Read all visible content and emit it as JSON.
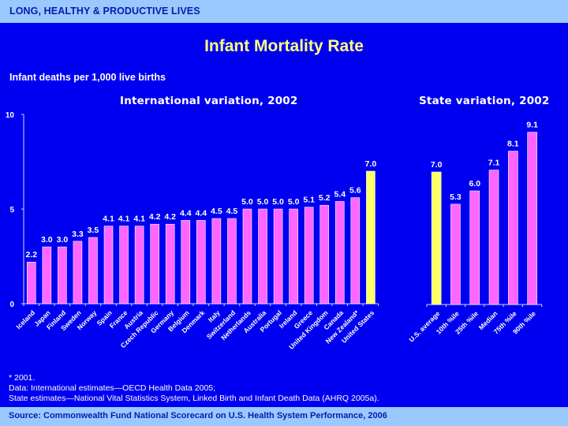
{
  "header": {
    "section_title": "LONG, HEALTHY & PRODUCTIVE LIVES"
  },
  "title": "Infant Mortality Rate",
  "subtitle": "Infant deaths per 1,000 live births",
  "labels": {
    "international": "International variation, 2002",
    "state": "State variation, 2002"
  },
  "footnotes": {
    "line1": "* 2001.",
    "line2": "Data: International estimates—OECD Health Data 2005;",
    "line3": "State estimates—National Vital Statistics System, Linked Birth and Infant Death Data (AHRQ 2005a)."
  },
  "source": "Source: Commonwealth Fund National Scorecard on U.S. Health System Performance, 2006",
  "colors": {
    "background": "#0000f0",
    "band": "#99c9ff",
    "bar_default": "#ff66ff",
    "bar_highlight": "#ffff66",
    "title": "#ffff80"
  },
  "chart_data": [
    {
      "type": "bar",
      "title": "International variation, 2002",
      "ylabel": "Infant deaths per 1,000 live births",
      "ylim": [
        0,
        10
      ],
      "yticks": [
        0,
        5,
        10
      ],
      "grid": false,
      "categories": [
        "Iceland",
        "Japan",
        "Finland",
        "Sweden",
        "Norway",
        "Spain",
        "France",
        "Austria",
        "Czech Republic",
        "Germany",
        "Belgium",
        "Denmark",
        "Italy",
        "Switzerland",
        "Netherlands",
        "Australia",
        "Portugal",
        "Ireland",
        "Greece",
        "United Kingdom",
        "Canada",
        "New Zealand*",
        "United States"
      ],
      "values": [
        2.2,
        3.0,
        3.0,
        3.3,
        3.5,
        4.1,
        4.1,
        4.1,
        4.2,
        4.2,
        4.4,
        4.4,
        4.5,
        4.5,
        5.0,
        5.0,
        5.0,
        5.0,
        5.1,
        5.2,
        5.4,
        5.6,
        7.0
      ],
      "value_labels": [
        "2.2",
        "3.0",
        "3.0",
        "3.3",
        "3.5",
        "4.1",
        "4.1",
        "4.1",
        "4.2",
        "4.2",
        "4.4",
        "4.4",
        "4.5",
        "4.5",
        "5.0",
        "5.0",
        "5.0",
        "5.0",
        "5.1",
        "5.2",
        "5.4",
        "5.6",
        "7.0"
      ],
      "highlight": [
        "United States"
      ]
    },
    {
      "type": "bar",
      "title": "State variation, 2002",
      "ylim": [
        0,
        10
      ],
      "grid": false,
      "categories": [
        "U.S. average",
        "10th %ile",
        "25th %ile",
        "Median",
        "75th %ile",
        "90th %ile"
      ],
      "values": [
        7.0,
        5.3,
        6.0,
        7.1,
        8.1,
        9.1
      ],
      "value_labels": [
        "7.0",
        "5.3",
        "6.0",
        "7.1",
        "8.1",
        "9.1"
      ],
      "highlight": [
        "U.S. average"
      ]
    }
  ]
}
